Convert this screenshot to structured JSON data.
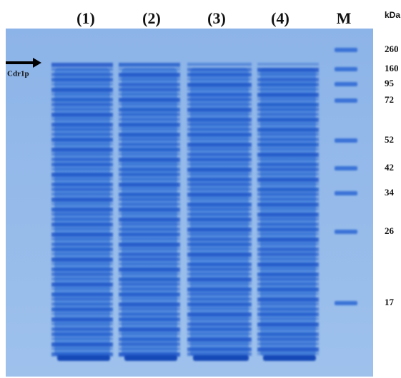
{
  "lane_labels": [
    "(1)",
    "(2)",
    "(3)",
    "(4)",
    "M"
  ],
  "unit_label": "kDa",
  "marker_labels": [
    "260",
    "160",
    "95",
    "72",
    "52",
    "42",
    "34",
    "26",
    "17"
  ],
  "arrow_label": "Cdr1p"
}
